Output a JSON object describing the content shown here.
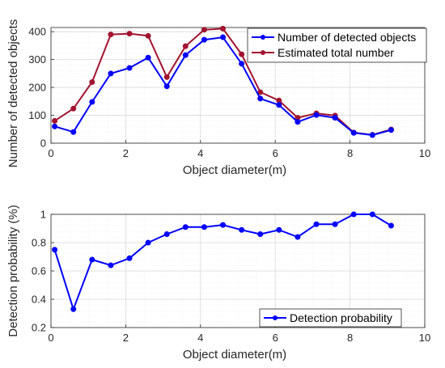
{
  "chart_data": [
    {
      "type": "line",
      "xlabel": "Object diameter(m)",
      "ylabel": "Number of detected objects",
      "xlim": [
        0,
        10
      ],
      "ylim": [
        0,
        415
      ],
      "xticks": [
        0,
        2,
        4,
        6,
        8,
        10
      ],
      "yticks": [
        0,
        100,
        200,
        300,
        400
      ],
      "grid": true,
      "legend_position": "top-right",
      "x": [
        0.1,
        0.6,
        1.1,
        1.6,
        2.1,
        2.6,
        3.1,
        3.6,
        4.1,
        4.6,
        5.1,
        5.6,
        6.1,
        6.6,
        7.1,
        7.6,
        8.1,
        8.6,
        9.1
      ],
      "series": [
        {
          "name": "Number of detected objects",
          "color": "#0000ff",
          "values": [
            60,
            40,
            148,
            250,
            270,
            307,
            204,
            316,
            371,
            380,
            285,
            160,
            137,
            76,
            101,
            91,
            37,
            29,
            47
          ]
        },
        {
          "name": "Estimated total number",
          "color": "#a2142f",
          "values": [
            80,
            124,
            219,
            390,
            393,
            385,
            237,
            348,
            407,
            411,
            319,
            183,
            153,
            91,
            107,
            99,
            38,
            30,
            49
          ]
        }
      ]
    },
    {
      "type": "line",
      "xlabel": "Object diameter(m)",
      "ylabel": "Detection probability (%)",
      "xlim": [
        0,
        10
      ],
      "ylim": [
        0.2,
        1.0
      ],
      "xticks": [
        0,
        2,
        4,
        6,
        8,
        10
      ],
      "yticks": [
        0.2,
        0.4,
        0.6,
        0.8,
        1
      ],
      "grid": true,
      "legend_position": "bottom-right",
      "x": [
        0.1,
        0.6,
        1.1,
        1.6,
        2.1,
        2.6,
        3.1,
        3.6,
        4.1,
        4.6,
        5.1,
        5.6,
        6.1,
        6.6,
        7.1,
        7.6,
        8.1,
        8.6,
        9.1
      ],
      "series": [
        {
          "name": "Detection probability",
          "color": "#0000ff",
          "values": [
            0.75,
            0.33,
            0.68,
            0.64,
            0.69,
            0.8,
            0.86,
            0.91,
            0.91,
            0.925,
            0.89,
            0.86,
            0.89,
            0.84,
            0.93,
            0.93,
            1.0,
            1.0,
            0.92
          ]
        }
      ]
    }
  ]
}
